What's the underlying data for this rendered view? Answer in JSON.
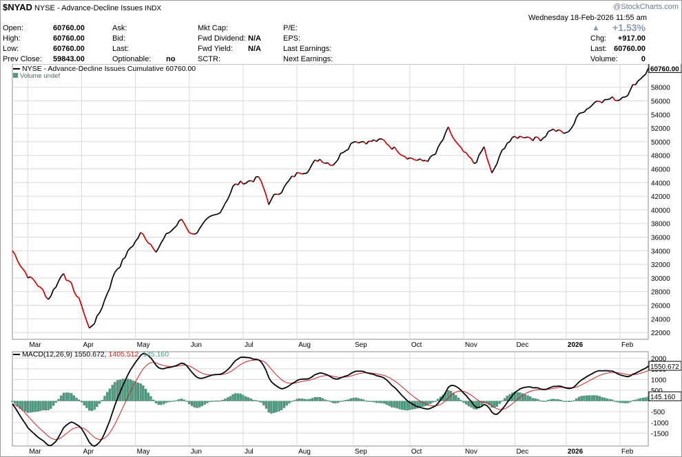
{
  "header": {
    "symbol": "$NYAD",
    "exchange": "NYSE",
    "name": "Advance-Decline Issues",
    "type": "INDX",
    "watermark": "@StockCharts.com",
    "datetime": "Wednesday  18-Feb-2026  11:55 am"
  },
  "quote": {
    "open_label": "Open:",
    "open": "60760.00",
    "high_label": "High:",
    "high": "60760.00",
    "low_label": "Low:",
    "low": "60760.00",
    "prev_label": "Prev Close:",
    "prev": "59843.00",
    "ask_label": "Ask:",
    "bid_label": "Bid:",
    "last_label": "Last:",
    "optionable_label": "Optionable:",
    "optionable": "no",
    "mktcap_label": "Mkt Cap:",
    "fwddiv_label": "Fwd Dividend:",
    "fwddiv": "N/A",
    "fwdyield_label": "Fwd Yield:",
    "fwdyield": "N/A",
    "sctr_label": "SCTR:",
    "pe_label": "P/E:",
    "eps_label": "EPS:",
    "lastearn_label": "Last Earnings:",
    "nextearn_label": "Next Earnings:",
    "chg_pct": "+1.53%",
    "chg_label": "Chg:",
    "chg": "+917.00",
    "last_label2": "Last:",
    "last": "60760.00",
    "volume_label": "Volume:",
    "volume": "0"
  },
  "colors": {
    "up": "#000000",
    "down": "#cc0000",
    "macd": "#000000",
    "signal": "#cc2222",
    "hist": "#4e9a82",
    "grid": "#d8d8d8"
  },
  "chart_data": [
    {
      "type": "line",
      "legend": "NYSE - Advance-Decline Issues Cumulative 60760.00",
      "sublegend": "Volume undef",
      "last_label": "60760.00",
      "ylim": [
        21000,
        61000
      ],
      "yticks": [
        22000,
        24000,
        26000,
        28000,
        30000,
        32000,
        34000,
        36000,
        38000,
        40000,
        42000,
        44000,
        46000,
        48000,
        50000,
        52000,
        54000,
        56000,
        58000
      ],
      "months": [
        "Mar",
        "Apr",
        "May",
        "Jun",
        "Jul",
        "Aug",
        "Sep",
        "Oct",
        "Nov",
        "Dec",
        "2026",
        "Feb"
      ],
      "month_pos": [
        6,
        27,
        48,
        69,
        90,
        111,
        133,
        155,
        176,
        196,
        216,
        237
      ],
      "n": 249,
      "anchors": [
        [
          0,
          34000
        ],
        [
          6,
          30500
        ],
        [
          10,
          29000
        ],
        [
          14,
          27000
        ],
        [
          20,
          31000
        ],
        [
          27,
          26000
        ],
        [
          30,
          22500
        ],
        [
          34,
          24800
        ],
        [
          40,
          31000
        ],
        [
          50,
          36500
        ],
        [
          56,
          34500
        ],
        [
          66,
          38500
        ],
        [
          70,
          36500
        ],
        [
          80,
          39000
        ],
        [
          86,
          43500
        ],
        [
          96,
          44800
        ],
        [
          100,
          41000
        ],
        [
          106,
          43500
        ],
        [
          112,
          45500
        ],
        [
          120,
          47500
        ],
        [
          125,
          47000
        ],
        [
          133,
          50500
        ],
        [
          144,
          50000
        ],
        [
          150,
          49000
        ],
        [
          160,
          47000
        ],
        [
          165,
          48000
        ],
        [
          170,
          51500
        ],
        [
          175,
          48500
        ],
        [
          180,
          46500
        ],
        [
          184,
          49000
        ],
        [
          187,
          45000
        ],
        [
          193,
          50000
        ],
        [
          200,
          51000
        ],
        [
          206,
          50500
        ],
        [
          210,
          52000
        ],
        [
          216,
          51000
        ],
        [
          222,
          54500
        ],
        [
          229,
          56500
        ],
        [
          236,
          56200
        ],
        [
          241,
          57800
        ],
        [
          248,
          60760
        ]
      ],
      "noise": 900
    },
    {
      "type": "line",
      "legend_label": "MACD(12,26,9)",
      "macd_value": "1550.672",
      "signal_value": "1405.512",
      "hist_value": "145.160",
      "ylim": [
        -2100,
        2300
      ],
      "yticks": [
        -1500,
        -1000,
        -500,
        500,
        1000,
        1500,
        2000
      ],
      "last_labels": [
        "1550.672",
        "145.160"
      ]
    }
  ]
}
